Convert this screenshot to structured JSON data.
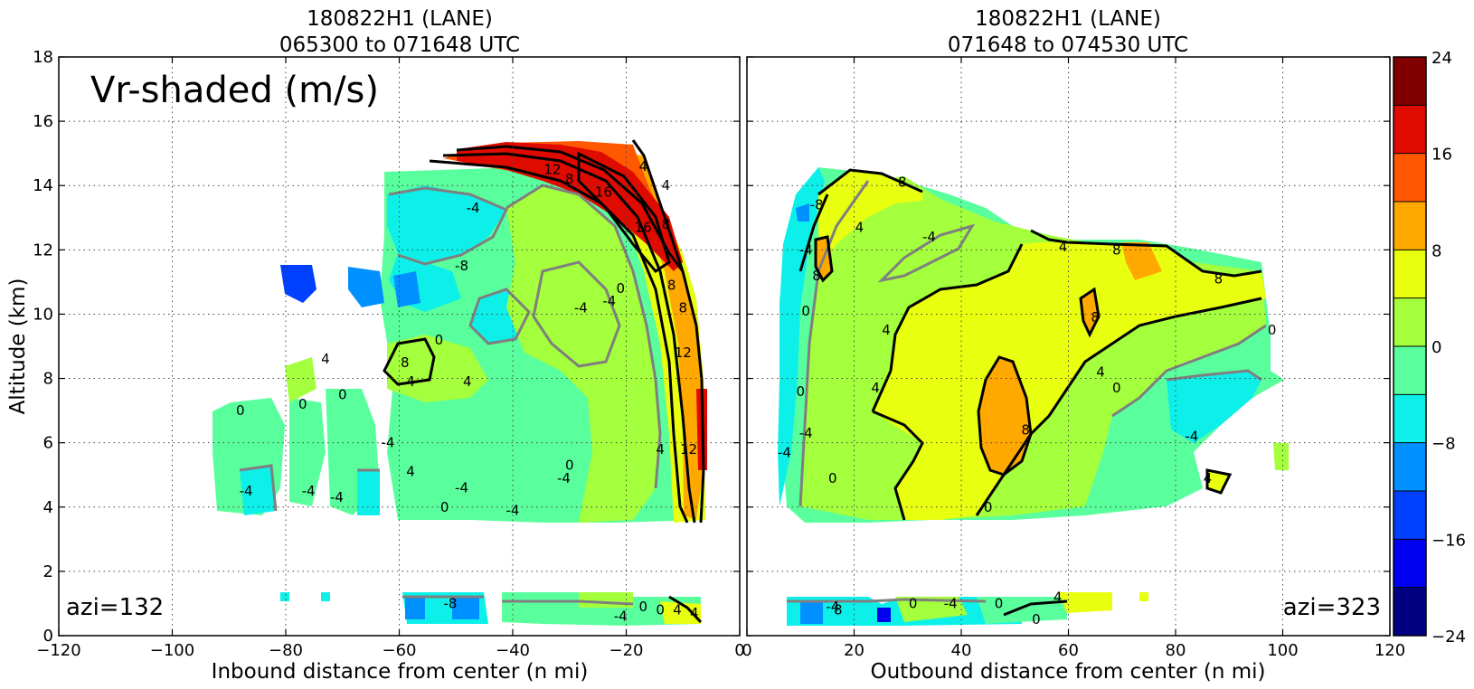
{
  "chart_data": [
    {
      "type": "heatmap",
      "panel": "left",
      "title": "180822H1 (LANE)",
      "subtitle": "065300 to 071648 UTC",
      "xlabel": "Inbound distance from center (n mi)",
      "ylabel": "Altitude (km)",
      "xlim": [
        -120,
        0
      ],
      "ylim": [
        0,
        18
      ],
      "x_ticks": [
        "−120",
        "−100",
        "−80",
        "−60",
        "−40",
        "−20",
        "0"
      ],
      "y_ticks": [
        "0",
        "2",
        "4",
        "6",
        "8",
        "10",
        "12",
        "14",
        "16",
        "18"
      ],
      "grid": true,
      "annotation": "Vr-shaded (m/s)",
      "azimuth_label": "azi=132",
      "contour_labels": [
        {
          "text": "0",
          "x": -88,
          "y": 7
        },
        {
          "text": "0",
          "x": -77,
          "y": 7.2
        },
        {
          "text": "0",
          "x": -70,
          "y": 7.5
        },
        {
          "text": "4",
          "x": -73,
          "y": 8.6
        },
        {
          "text": "-4",
          "x": -87,
          "y": 4.5
        },
        {
          "text": "-4",
          "x": -76,
          "y": 4.5
        },
        {
          "text": "-4",
          "x": -71,
          "y": 4.3
        },
        {
          "text": "-4",
          "x": -62,
          "y": 6.0
        },
        {
          "text": "4",
          "x": -58,
          "y": 5.1
        },
        {
          "text": "4",
          "x": -58,
          "y": 7.9
        },
        {
          "text": "8",
          "x": -59,
          "y": 8.5
        },
        {
          "text": "0",
          "x": -53,
          "y": 9.2
        },
        {
          "text": "4",
          "x": -48,
          "y": 7.9
        },
        {
          "text": "-4",
          "x": -49,
          "y": 4.6
        },
        {
          "text": "0",
          "x": -52,
          "y": 4.0
        },
        {
          "text": "-4",
          "x": -40,
          "y": 3.9
        },
        {
          "text": "-4",
          "x": -31,
          "y": 4.9
        },
        {
          "text": "0",
          "x": -30,
          "y": 5.3
        },
        {
          "text": "-4",
          "x": -28,
          "y": 10.2
        },
        {
          "text": "-4",
          "x": -47,
          "y": 13.3
        },
        {
          "text": "-8",
          "x": -49,
          "y": 11.5
        },
        {
          "text": "0",
          "x": -21,
          "y": 10.8
        },
        {
          "text": "-4",
          "x": -23,
          "y": 10.4
        },
        {
          "text": "4",
          "x": -14,
          "y": 5.8
        },
        {
          "text": "12",
          "x": -9,
          "y": 5.8
        },
        {
          "text": "12",
          "x": -10,
          "y": 8.8
        },
        {
          "text": "8",
          "x": -10,
          "y": 10.2
        },
        {
          "text": "8",
          "x": -12,
          "y": 10.9
        },
        {
          "text": "8",
          "x": -13,
          "y": 12.8
        },
        {
          "text": "16",
          "x": -17,
          "y": 12.7
        },
        {
          "text": "16",
          "x": -24,
          "y": 13.8
        },
        {
          "text": "8",
          "x": -30,
          "y": 14.2
        },
        {
          "text": "12",
          "x": -33,
          "y": 14.5
        },
        {
          "text": "4",
          "x": -17,
          "y": 14.6
        },
        {
          "text": "4",
          "x": -13,
          "y": 14.0
        },
        {
          "text": "0",
          "x": -17,
          "y": 0.9
        },
        {
          "text": "0",
          "x": -14,
          "y": 0.8
        },
        {
          "text": "-4",
          "x": -21,
          "y": 0.6
        },
        {
          "text": "4",
          "x": -11,
          "y": 0.8
        },
        {
          "text": "4",
          "x": -8,
          "y": 0.7
        },
        {
          "text": "-8",
          "x": -51,
          "y": 1.0
        }
      ]
    },
    {
      "type": "heatmap",
      "panel": "right",
      "title": "180822H1 (LANE)",
      "subtitle": "071648 to 074530 UTC",
      "xlabel": "Outbound distance from center (n mi)",
      "xlim": [
        0,
        120
      ],
      "ylim": [
        0,
        18
      ],
      "x_ticks": [
        "0",
        "20",
        "40",
        "60",
        "80",
        "100",
        "120"
      ],
      "grid": true,
      "azimuth_label": "azi=323",
      "contour_labels": [
        {
          "text": "0",
          "x": 11,
          "y": 10.1
        },
        {
          "text": "8",
          "x": 13,
          "y": 11.2
        },
        {
          "text": "-4",
          "x": 11,
          "y": 12.0
        },
        {
          "text": "-8",
          "x": 13,
          "y": 13.4
        },
        {
          "text": "4",
          "x": 21,
          "y": 12.7
        },
        {
          "text": "8",
          "x": 29,
          "y": 14.1
        },
        {
          "text": "-4",
          "x": 34,
          "y": 12.4
        },
        {
          "text": "4",
          "x": 26,
          "y": 9.5
        },
        {
          "text": "4",
          "x": 24,
          "y": 7.7
        },
        {
          "text": "0",
          "x": 10,
          "y": 7.6
        },
        {
          "text": "-4",
          "x": 11,
          "y": 6.3
        },
        {
          "text": "-4",
          "x": 7,
          "y": 5.7
        },
        {
          "text": "0",
          "x": 16,
          "y": 4.9
        },
        {
          "text": "4",
          "x": 59,
          "y": 12.1
        },
        {
          "text": "8",
          "x": 69,
          "y": 12.0
        },
        {
          "text": "8",
          "x": 88,
          "y": 11.1
        },
        {
          "text": "8",
          "x": 65,
          "y": 9.9
        },
        {
          "text": "8",
          "x": 52,
          "y": 6.4
        },
        {
          "text": "4",
          "x": 66,
          "y": 8.2
        },
        {
          "text": "0",
          "x": 69,
          "y": 7.7
        },
        {
          "text": "0",
          "x": 98,
          "y": 9.5
        },
        {
          "text": "-4",
          "x": 83,
          "y": 6.2
        },
        {
          "text": "4",
          "x": 86,
          "y": 4.9
        },
        {
          "text": "0",
          "x": 45,
          "y": 4.0
        },
        {
          "text": "8",
          "x": 17,
          "y": 0.8
        },
        {
          "text": "-4",
          "x": 16,
          "y": 0.9
        },
        {
          "text": "0",
          "x": 31,
          "y": 1.0
        },
        {
          "text": "-4",
          "x": 38,
          "y": 1.0
        },
        {
          "text": "0",
          "x": 47,
          "y": 1.0
        },
        {
          "text": "4",
          "x": 58,
          "y": 1.2
        },
        {
          "text": "0",
          "x": 54,
          "y": 0.5
        }
      ]
    }
  ],
  "colorbar": {
    "levels": [
      24,
      20,
      16,
      12,
      8,
      4,
      0,
      -4,
      -8,
      -12,
      -16,
      -20,
      -24
    ],
    "tick_labels": [
      "24",
      "16",
      "8",
      "0",
      "−8",
      "−16",
      "−24"
    ],
    "colors": [
      "#800000",
      "#e00b00",
      "#ff5800",
      "#ffa900",
      "#e8ff10",
      "#a4ff3c",
      "#5aff9d",
      "#0df0e9",
      "#0090ff",
      "#0040ff",
      "#0000f1",
      "#000080"
    ]
  }
}
